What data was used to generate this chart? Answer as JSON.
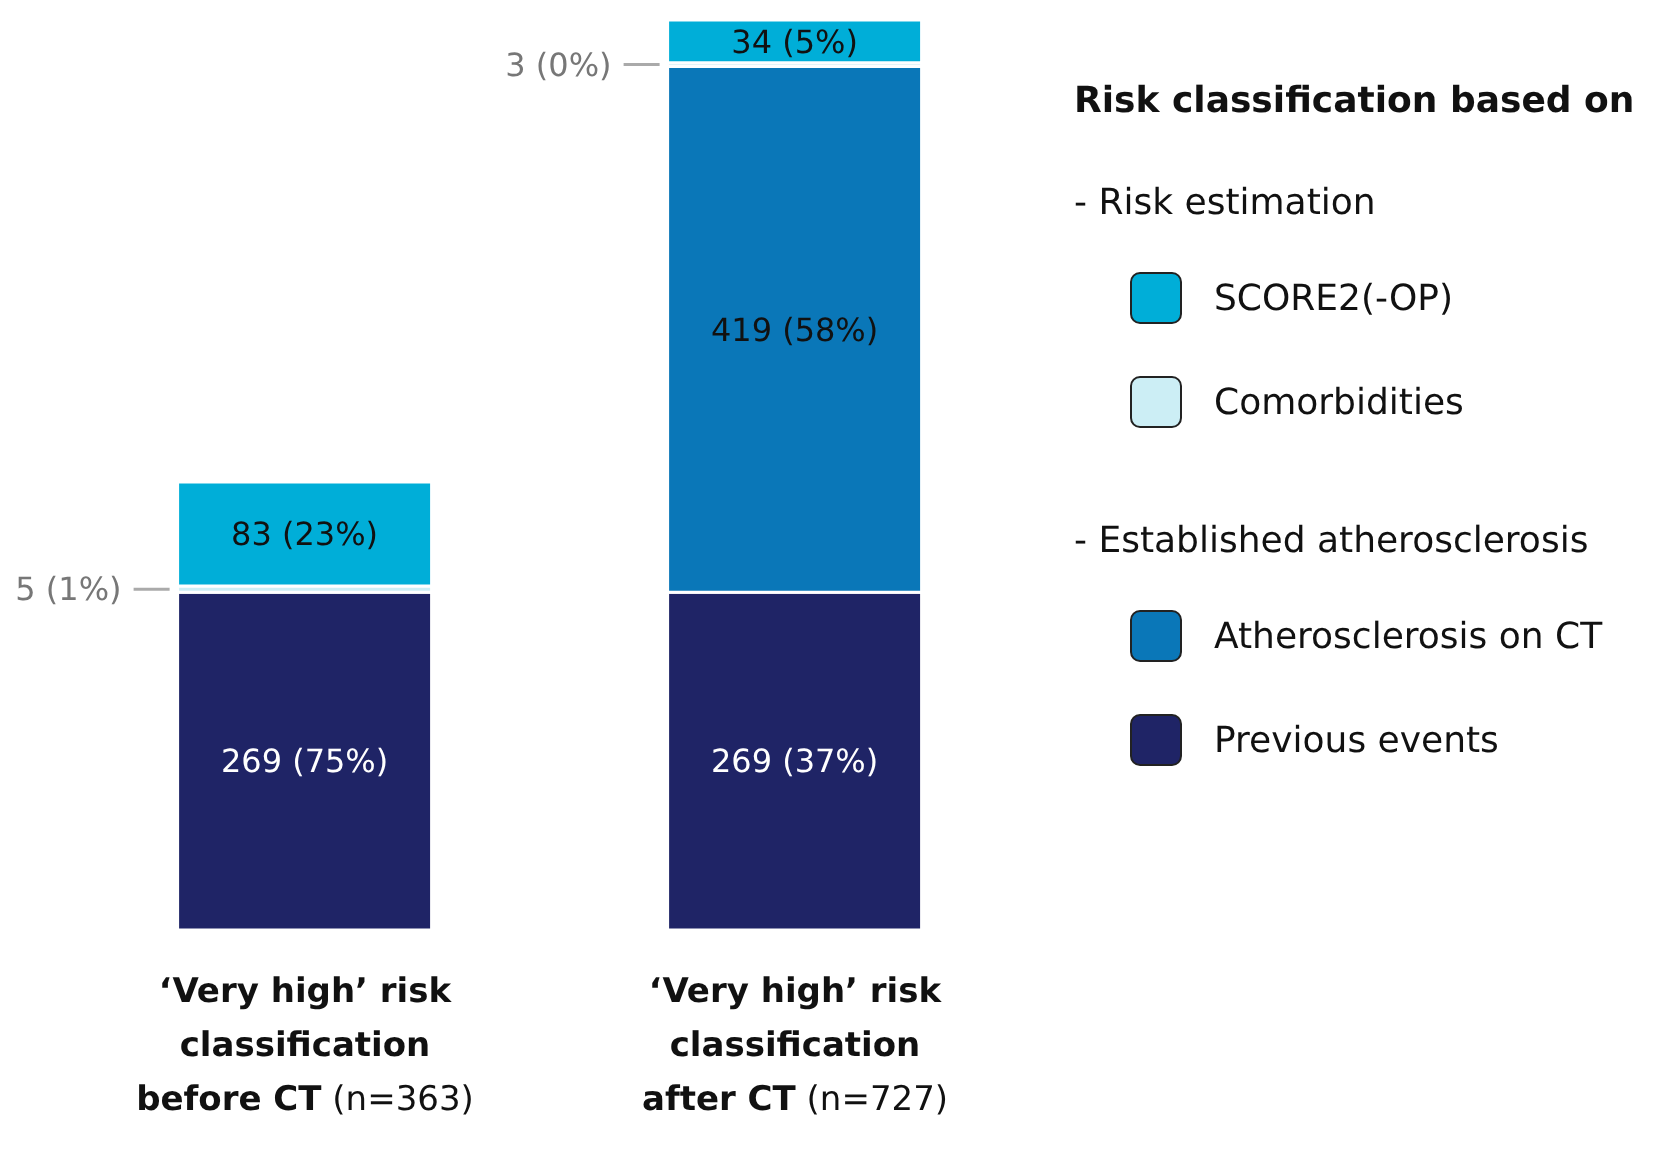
{
  "chart_data": {
    "type": "bar",
    "stacked": true,
    "legend": "right",
    "legend_title": "Risk classification based on",
    "categories": [
      "‘Very high’ risk classification before CT (n=363)",
      "‘Very high’ risk classification after CT (n=727)"
    ],
    "series": [
      {
        "name": "Previous events",
        "color": "#1f2466",
        "values": [
          269,
          269
        ],
        "value_labels": [
          "269 (75%)",
          "269 (37%)"
        ]
      },
      {
        "name": "Atherosclerosis on CT",
        "color": "#0a77b8",
        "values": [
          null,
          419
        ],
        "value_labels": [
          null,
          "419 (58%)"
        ]
      },
      {
        "name": "Comorbidities",
        "color": "#cceef5",
        "values": [
          5,
          3
        ],
        "value_labels": [
          "5 (1%)",
          "3 (0%)"
        ]
      },
      {
        "name": "SCORE2(-OP)",
        "color": "#00aed8",
        "values": [
          83,
          34
        ],
        "value_labels": [
          "83 (23%)",
          "34 (5%)"
        ]
      }
    ],
    "annotations": [
      "- Risk estimation",
      "- Established atherosclerosis"
    ]
  }
}
